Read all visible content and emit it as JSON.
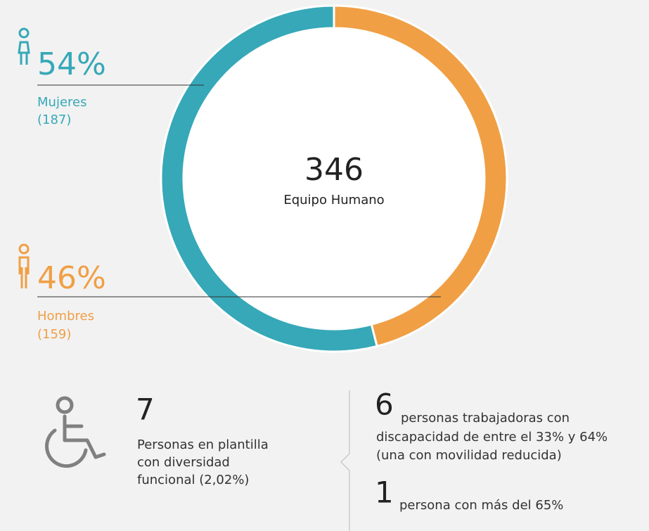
{
  "chart_data": {
    "type": "donut",
    "categories": [
      "Mujeres",
      "Hombres"
    ],
    "values": [
      54,
      46
    ],
    "value_labels": [
      "54%",
      "46%"
    ],
    "count_labels": [
      "(187)",
      "(159)"
    ],
    "colors": [
      "#36a8b8",
      "#f09f45"
    ],
    "center_value": "346",
    "center_label": "Equipo Humano"
  },
  "stats": {
    "main_value": "7",
    "main_lines": [
      "Personas en plantilla",
      "con diversidad",
      "funcional (2,02%)"
    ],
    "details": [
      {
        "value": "6",
        "lines": [
          "personas trabajadoras con",
          "discapacidad de entre el 33% y 64%",
          "(una con movilidad reducida)"
        ]
      },
      {
        "value": "1",
        "lines": [
          "persona con más del 65%"
        ]
      }
    ]
  }
}
